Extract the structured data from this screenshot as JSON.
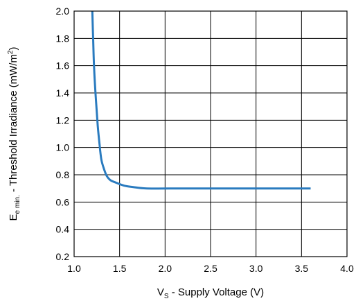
{
  "chart_data": {
    "type": "line",
    "xlabel": {
      "main": "V",
      "sub": "S",
      "rest": " - Supply Voltage (V)"
    },
    "ylabel": {
      "main": "E",
      "sub": "e min.",
      "rest": " - Threshold Irradiance (mW/m",
      "sup": "2",
      "end": ")"
    },
    "xlim": [
      1.0,
      4.0
    ],
    "ylim": [
      0.2,
      2.0
    ],
    "xticks": [
      "1.0",
      "1.5",
      "2.0",
      "2.5",
      "3.0",
      "3.5",
      "4.0"
    ],
    "yticks": [
      "0.2",
      "0.4",
      "0.6",
      "0.8",
      "1.0",
      "1.2",
      "1.4",
      "1.6",
      "1.8",
      "2.0"
    ],
    "grid": true,
    "line_color": "#2a7bbf",
    "series": [
      {
        "x": [
          1.2,
          1.21,
          1.22,
          1.24,
          1.26,
          1.28,
          1.3,
          1.33,
          1.36,
          1.4,
          1.45,
          1.55,
          1.65,
          1.8,
          2.2,
          2.6,
          3.0,
          3.3,
          3.6
        ],
        "y": [
          2.0,
          1.78,
          1.58,
          1.35,
          1.16,
          1.02,
          0.91,
          0.84,
          0.79,
          0.76,
          0.745,
          0.72,
          0.71,
          0.7,
          0.7,
          0.7,
          0.7,
          0.7,
          0.7
        ]
      }
    ]
  }
}
